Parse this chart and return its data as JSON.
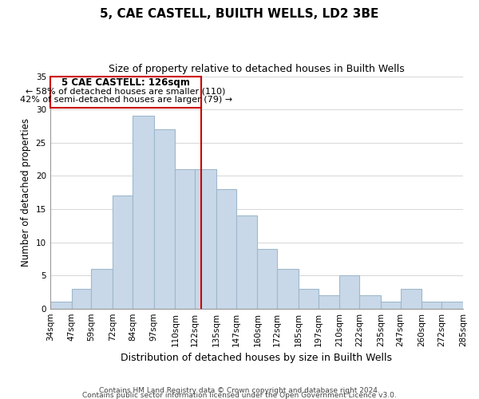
{
  "title": "5, CAE CASTELL, BUILTH WELLS, LD2 3BE",
  "subtitle": "Size of property relative to detached houses in Builth Wells",
  "xlabel": "Distribution of detached houses by size in Builth Wells",
  "ylabel": "Number of detached properties",
  "footer_lines": [
    "Contains HM Land Registry data © Crown copyright and database right 2024.",
    "Contains public sector information licensed under the Open Government Licence v3.0."
  ],
  "bin_edges": [
    34,
    47,
    59,
    72,
    84,
    97,
    110,
    122,
    135,
    147,
    160,
    172,
    185,
    197,
    210,
    222,
    235,
    247,
    260,
    272,
    285
  ],
  "bar_heights": [
    1,
    3,
    6,
    17,
    29,
    27,
    21,
    21,
    18,
    14,
    9,
    6,
    3,
    2,
    5,
    2,
    1,
    3,
    1,
    1
  ],
  "bar_color": "#c8d8e8",
  "bar_edgecolor": "#9fb8cc",
  "vline_x": 126,
  "vline_color": "#cc0000",
  "annotation_title": "5 CAE CASTELL: 126sqm",
  "annotation_line1": "← 58% of detached houses are smaller (110)",
  "annotation_line2": "42% of semi-detached houses are larger (79) →",
  "annotation_box_edgecolor": "#cc0000",
  "annotation_box_facecolor": "#ffffff",
  "ylim": [
    0,
    35
  ],
  "yticks": [
    0,
    5,
    10,
    15,
    20,
    25,
    30,
    35
  ],
  "xlim_left": 34,
  "xlim_right": 285,
  "x_tick_labels": [
    "34sqm",
    "47sqm",
    "59sqm",
    "72sqm",
    "84sqm",
    "97sqm",
    "110sqm",
    "122sqm",
    "135sqm",
    "147sqm",
    "160sqm",
    "172sqm",
    "185sqm",
    "197sqm",
    "210sqm",
    "222sqm",
    "235sqm",
    "247sqm",
    "260sqm",
    "272sqm",
    "285sqm"
  ]
}
